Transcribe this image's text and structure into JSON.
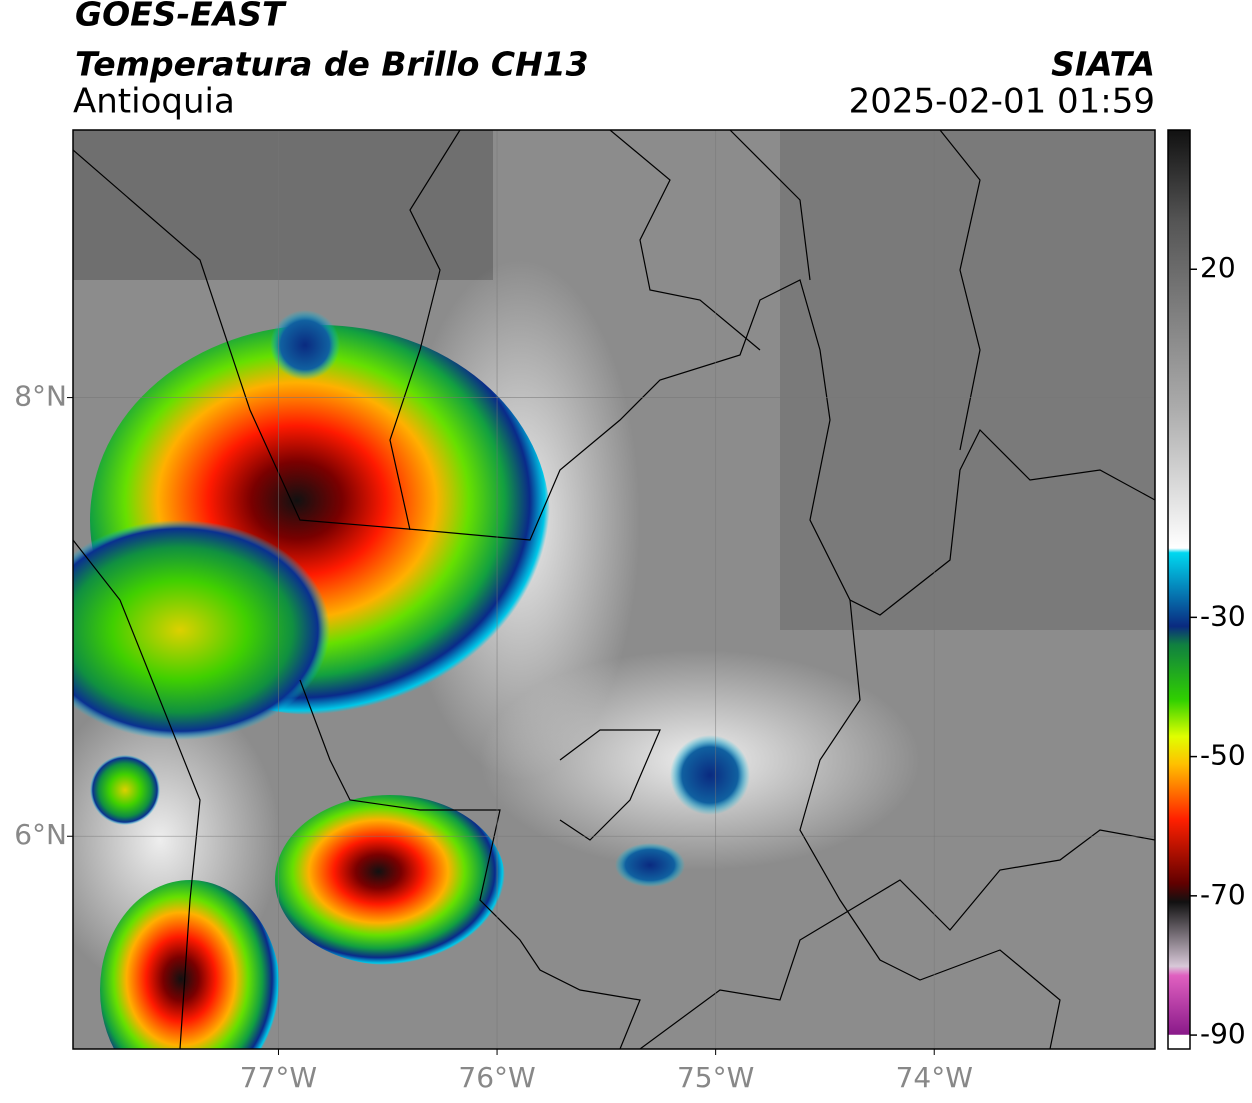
{
  "header": {
    "title": "GOES-EAST",
    "subtitle": "Temperatura de Brillo CH13",
    "region": "Antioquia",
    "source": "SIATA",
    "datetime": "2025-02-01 01:59"
  },
  "map": {
    "xlim": [
      -77.94,
      -72.99
    ],
    "ylim": [
      5.03,
      9.22
    ],
    "xticks": [
      {
        "value": -77,
        "label": "77°W"
      },
      {
        "value": -76,
        "label": "76°W"
      },
      {
        "value": -75,
        "label": "75°W"
      },
      {
        "value": -74,
        "label": "74°W"
      }
    ],
    "yticks": [
      {
        "value": 8,
        "label": "8°N"
      },
      {
        "value": 6,
        "label": "6°N"
      }
    ],
    "grid": true
  },
  "colorbar": {
    "lim": [
      -92,
      40
    ],
    "ticks": [
      20,
      -30,
      -50,
      -70,
      -90
    ]
  }
}
